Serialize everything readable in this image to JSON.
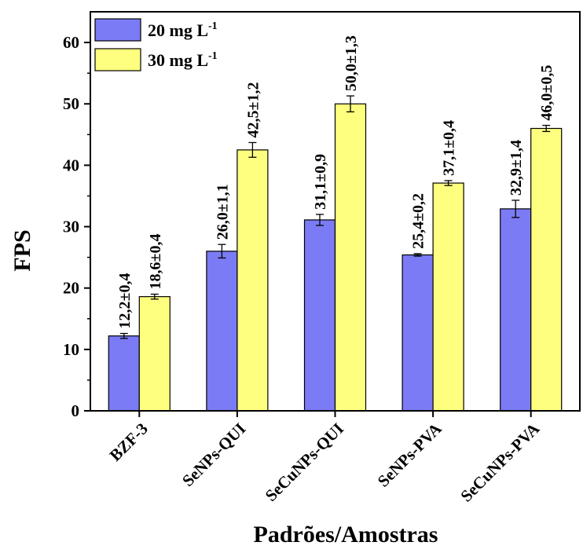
{
  "chart_data": {
    "type": "bar",
    "title": "",
    "xlabel": "Padrões/Amostras",
    "ylabel": "FPS",
    "ylim": [
      0,
      65
    ],
    "yticks": [
      0,
      10,
      20,
      30,
      40,
      50,
      60
    ],
    "grid": false,
    "legend_position": "top-left",
    "categories": [
      "BZF-3",
      "SeNPs-QUI",
      "SeCuNPs-QUI",
      "SeNPs-PVA",
      "SeCuNPs-PVA"
    ],
    "series": [
      {
        "name_main": "20 mg L",
        "name_sup": "-1",
        "color": "#7b7bf5",
        "values": [
          12.2,
          26.0,
          31.1,
          25.4,
          32.9
        ],
        "errors": [
          0.4,
          1.1,
          0.9,
          0.2,
          1.4
        ],
        "labels": [
          "12,2±0,4",
          "26,0±1,1",
          "31,1±0,9",
          "25,4±0,2",
          "32,9±1,4"
        ]
      },
      {
        "name_main": "30 mg L",
        "name_sup": "-1",
        "color": "#ffff7f",
        "values": [
          18.6,
          42.5,
          50.0,
          37.1,
          46.0
        ],
        "errors": [
          0.4,
          1.2,
          1.3,
          0.4,
          0.5
        ],
        "labels": [
          "18,6±0,4",
          "42,5±1,2",
          "50,0±1,3",
          "37,1±0,4",
          "46,0±0,5"
        ]
      }
    ]
  }
}
